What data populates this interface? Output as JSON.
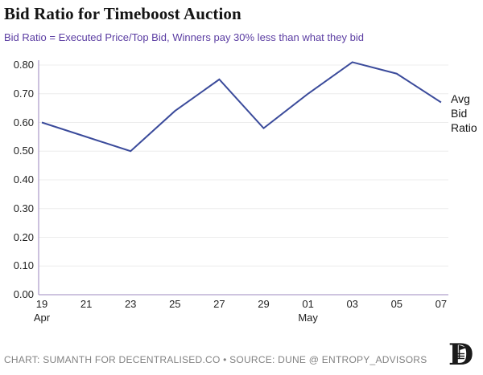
{
  "header": {
    "title": "Bid Ratio for Timeboost Auction",
    "subtitle": "Bid Ratio = Executed Price/Top Bid, Winners pay 30% less than what they bid"
  },
  "chart_data": {
    "type": "line",
    "title": "Bid Ratio for Timeboost Auction",
    "xlabel": "",
    "ylabel": "",
    "ylim": [
      0,
      0.8
    ],
    "grid": "horizontal",
    "legend_position": "right-of-last-point",
    "x_ticks": [
      {
        "label": "19",
        "sub": "Apr"
      },
      {
        "label": "21"
      },
      {
        "label": "23"
      },
      {
        "label": "25"
      },
      {
        "label": "27"
      },
      {
        "label": "29"
      },
      {
        "label": "01",
        "sub": "May"
      },
      {
        "label": "03"
      },
      {
        "label": "05"
      },
      {
        "label": "07"
      }
    ],
    "y_ticks": [
      "0.00",
      "0.10",
      "0.20",
      "0.30",
      "0.40",
      "0.50",
      "0.60",
      "0.70",
      "0.80"
    ],
    "series": [
      {
        "name": "Avg Bid Ratio",
        "values": [
          0.6,
          0.55,
          0.5,
          0.64,
          0.75,
          0.58,
          0.7,
          0.81,
          0.77,
          0.67
        ]
      }
    ],
    "series_label_lines": [
      "Avg",
      "Bid",
      "Ratio"
    ]
  },
  "footer": {
    "credit": "CHART: SUMANTH FOR DECENTRALISED.CO • SOURCE: DUNE @ ENTROPY_ADVISORS"
  },
  "logo": {
    "letter": "D"
  },
  "colors": {
    "line": "#3b4b9b",
    "axis": "#b1a0cc",
    "grid": "#ececec",
    "title": "#141414",
    "subtitle": "#5b3da2",
    "tick_label": "#1f1f1f",
    "annotation": "#141414",
    "footer": "#828282",
    "background": "#ffffff"
  }
}
